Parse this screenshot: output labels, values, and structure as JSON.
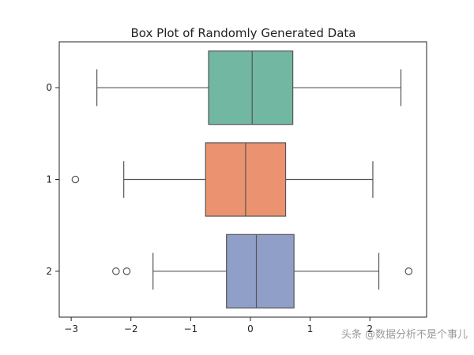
{
  "chart_data": {
    "type": "box",
    "orientation": "horizontal",
    "title": "Box Plot of Randomly Generated Data",
    "xlabel": "",
    "ylabel": "",
    "xlim": [
      -3.2,
      2.95
    ],
    "xticks": [
      -3,
      -2,
      -1,
      0,
      1,
      2
    ],
    "xtick_labels": [
      "−3",
      "−2",
      "−1",
      "0",
      "1",
      "2"
    ],
    "grid": false,
    "legend": "none",
    "categories": [
      "0",
      "1",
      "2"
    ],
    "series": [
      {
        "whisker_low": -2.57,
        "q1": -0.7,
        "median": 0.03,
        "q3": 0.71,
        "whisker_high": 2.52,
        "outliers": [],
        "color": "#72b7a1"
      },
      {
        "whisker_low": -2.12,
        "q1": -0.75,
        "median": -0.08,
        "q3": 0.59,
        "whisker_high": 2.05,
        "outliers": [
          -2.93
        ],
        "color": "#eb9370"
      },
      {
        "whisker_low": -1.63,
        "q1": -0.4,
        "median": 0.1,
        "q3": 0.73,
        "whisker_high": 2.15,
        "outliers": [
          -2.25,
          -2.07,
          2.65
        ],
        "color": "#8f9fc8"
      }
    ]
  },
  "watermark": "头条 @数据分析不是个事儿"
}
